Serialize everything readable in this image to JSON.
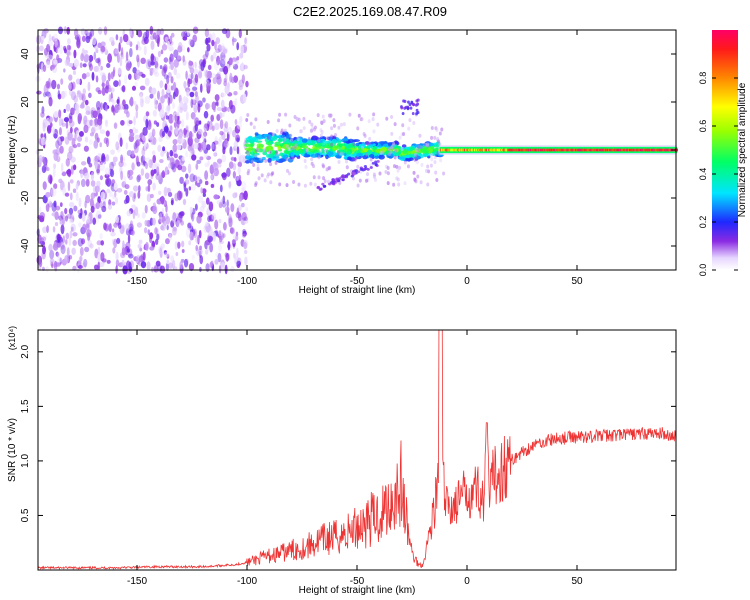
{
  "title": "C2E2.2025.169.08.47.R09",
  "chart_data": [
    {
      "type": "heatmap",
      "xlabel": "Height of straight line (km)",
      "ylabel": "Frequency (Hz)",
      "xlim": [
        -195,
        95
      ],
      "ylim": [
        -50,
        50
      ],
      "xticks": [
        -150,
        -100,
        -50,
        0,
        50
      ],
      "yticks": [
        -40,
        -20,
        0,
        20,
        40
      ],
      "colorbar": {
        "label": "Normalized spectral amplitude",
        "range": [
          0,
          1
        ],
        "ticks": [
          0.0,
          0.2,
          0.4,
          0.6,
          0.8
        ],
        "tick_labels": [
          "0.0",
          "0.2",
          "0.4",
          "0.6",
          "0.8"
        ]
      },
      "features": [
        {
          "region": "noise-field",
          "x_range": [
            -195,
            -100
          ],
          "y_range": [
            -50,
            50
          ],
          "amplitude": [
            0.0,
            0.15
          ]
        },
        {
          "region": "band-onset",
          "x_range": [
            -100,
            -55
          ],
          "y_center": [
            0,
            2
          ],
          "y_halfwidth": 5,
          "amplitude": [
            0.2,
            0.5
          ]
        },
        {
          "region": "band-middle",
          "x_range": [
            -55,
            -12
          ],
          "y_center": [
            2,
            -2
          ],
          "y_halfwidth": 3,
          "amplitude": [
            0.3,
            0.6
          ]
        },
        {
          "region": "upper-feature",
          "x_range": [
            -30,
            -22
          ],
          "y_center": 18,
          "amplitude": [
            0.1,
            0.2
          ]
        },
        {
          "region": "lower-branch",
          "x_range": [
            -68,
            -40
          ],
          "y_center": [
            -16,
            -5
          ],
          "amplitude": [
            0.05,
            0.15
          ]
        },
        {
          "region": "carrier-line",
          "x_range": [
            -12,
            95
          ],
          "y_center": 0,
          "amplitude": [
            0.8,
            1.0
          ]
        }
      ]
    },
    {
      "type": "line",
      "xlabel": "Height of straight line (km)",
      "ylabel": "SNR (10 * v/v)",
      "y_multiplier": "(x10⁴)",
      "xlim": [
        -195,
        95
      ],
      "ylim": [
        0,
        2.2
      ],
      "xticks": [
        -150,
        -100,
        -50,
        0,
        50
      ],
      "yticks": [
        0.5,
        1.0,
        1.5,
        2.0
      ],
      "ytick_labels": [
        "0.5",
        "1.0",
        "1.5",
        "2.0"
      ],
      "series": [
        {
          "color": "#ee3333",
          "x": [
            -195,
            -180,
            -160,
            -140,
            -120,
            -105,
            -100,
            -95,
            -90,
            -85,
            -80,
            -75,
            -70,
            -65,
            -60,
            -55,
            -50,
            -45,
            -40,
            -35,
            -32,
            -30,
            -28,
            -25,
            -22,
            -20,
            -18,
            -15,
            -13,
            -12,
            -11,
            -10,
            -8,
            -5,
            0,
            5,
            8,
            9,
            10,
            12,
            15,
            20,
            25,
            30,
            35,
            40,
            45,
            50,
            60,
            70,
            80,
            90,
            95
          ],
          "y": [
            0.02,
            0.02,
            0.02,
            0.03,
            0.03,
            0.05,
            0.07,
            0.1,
            0.13,
            0.15,
            0.18,
            0.2,
            0.24,
            0.28,
            0.3,
            0.33,
            0.4,
            0.45,
            0.5,
            0.62,
            0.72,
            0.78,
            0.5,
            0.15,
            0.05,
            0.05,
            0.25,
            0.55,
            0.8,
            2.2,
            0.9,
            0.6,
            0.58,
            0.6,
            0.72,
            0.75,
            0.6,
            1.35,
            0.65,
            0.85,
            0.92,
            1.0,
            1.08,
            1.14,
            1.18,
            1.2,
            1.21,
            1.22,
            1.23,
            1.24,
            1.25,
            1.25,
            1.22
          ]
        }
      ]
    }
  ]
}
